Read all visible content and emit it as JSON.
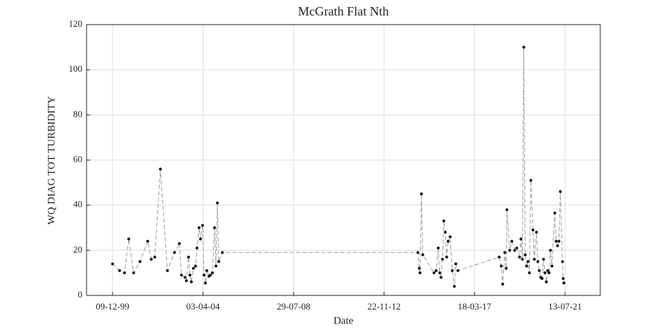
{
  "chart_data": {
    "type": "line",
    "title": "McGrath Flat Nth",
    "x_label": "Date",
    "y_label": "WQ DIAG TOT TURBIDITY",
    "x": [
      "1999-12-09",
      "2000-04-10",
      "2000-07-04",
      "2000-09-16",
      "2000-12-11",
      "2001-03-31",
      "2001-08-13",
      "2001-10-13",
      "2001-12-14",
      "2002-03-22",
      "2002-07-22",
      "2002-11-22",
      "2003-02-16",
      "2003-03-24",
      "2003-05-25",
      "2003-06-18",
      "2003-07-25",
      "2003-08-19",
      "2003-09-12",
      "2003-10-19",
      "2003-11-25",
      "2003-12-19",
      "2004-01-25",
      "2004-02-19",
      "2004-03-26",
      "2004-04-20",
      "2004-05-14",
      "2004-06-08",
      "2004-07-15",
      "2004-08-08",
      "2004-09-14",
      "2004-10-21",
      "2004-11-14",
      "2004-12-09",
      "2005-01-02",
      "2005-03-05",
      "2014-07-04",
      "2014-07-29",
      "2014-08-10",
      "2014-09-04",
      "2014-09-28",
      "2015-04-12",
      "2015-05-18",
      "2015-06-24",
      "2015-07-19",
      "2015-08-12",
      "2015-09-06",
      "2015-09-30",
      "2015-10-25",
      "2015-11-18",
      "2015-12-13",
      "2016-01-18",
      "2016-02-24",
      "2016-04-01",
      "2016-04-25",
      "2016-06-01",
      "2018-05-21",
      "2018-06-27",
      "2018-07-21",
      "2018-08-27",
      "2018-09-21",
      "2018-10-03",
      "2018-11-21",
      "2018-12-28",
      "2019-02-15",
      "2019-03-24",
      "2019-05-12",
      "2019-06-05",
      "2019-06-30",
      "2019-07-24",
      "2019-08-18",
      "2019-09-11",
      "2019-10-06",
      "2019-10-30",
      "2019-11-24",
      "2019-12-31",
      "2020-01-24",
      "2020-03-01",
      "2020-03-25",
      "2020-04-19",
      "2020-05-14",
      "2020-06-07",
      "2020-07-02",
      "2020-07-26",
      "2020-08-20",
      "2020-09-13",
      "2020-10-08",
      "2020-11-01",
      "2020-11-26",
      "2021-01-14",
      "2021-02-07",
      "2021-03-04",
      "2021-03-28",
      "2021-04-22",
      "2021-05-29",
      "2021-06-10",
      "2021-06-22"
    ],
    "values": [
      14,
      11,
      10,
      25,
      10,
      15,
      24,
      16,
      17,
      56,
      11,
      19,
      23,
      9,
      8,
      6.5,
      17,
      9,
      6,
      12,
      13,
      21,
      30,
      25,
      31,
      9,
      5.5,
      11,
      8.5,
      9,
      10,
      30,
      13,
      41,
      15,
      19,
      19,
      12,
      10,
      45,
      18,
      10,
      11,
      21,
      10,
      8,
      16,
      33,
      28,
      17,
      24,
      26,
      11,
      4,
      14,
      11,
      17,
      13,
      5,
      19,
      12,
      38,
      20,
      24,
      20,
      21,
      17,
      25,
      16,
      110,
      18,
      13,
      15,
      10,
      51,
      29,
      16,
      28,
      15,
      11,
      8,
      7.5,
      16,
      10,
      6,
      11,
      10,
      20,
      13,
      36.5,
      24,
      22,
      24,
      46,
      15,
      7.5,
      5.5
    ],
    "line_color": "#9a9a9a",
    "marker_color": "#111111",
    "grid": true,
    "xlim": [
      "1998-09-12",
      "2023-03-18"
    ],
    "xticks": [
      {
        "value": "1999-12-09",
        "label": "09-12-99"
      },
      {
        "value": "2004-04-03",
        "label": "03-04-04"
      },
      {
        "value": "2008-07-29",
        "label": "29-07-08"
      },
      {
        "value": "2012-11-22",
        "label": "22-11-12"
      },
      {
        "value": "2017-03-18",
        "label": "18-03-17"
      },
      {
        "value": "2021-07-13",
        "label": "13-07-21"
      }
    ],
    "ylim": [
      0,
      120
    ],
    "yticks": [
      0,
      20,
      40,
      60,
      80,
      100,
      120
    ]
  }
}
